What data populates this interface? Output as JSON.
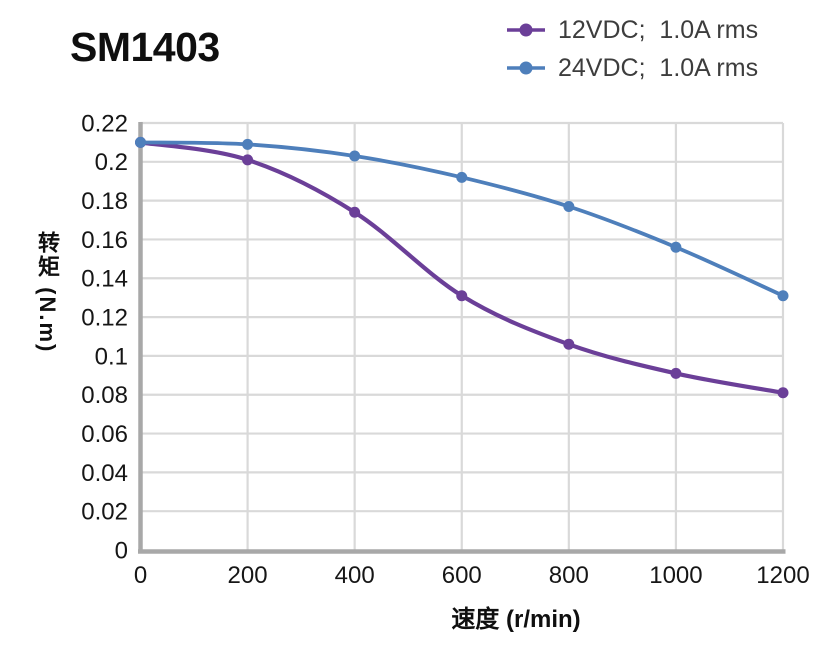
{
  "title": "SM1403",
  "chart_data": {
    "type": "line",
    "x": [
      0,
      200,
      400,
      600,
      800,
      1000,
      1200
    ],
    "series": [
      {
        "name": "12VDC;  1.0A rms",
        "color": "#6B3F98",
        "values": [
          0.21,
          0.201,
          0.174,
          0.131,
          0.106,
          0.091,
          0.081
        ]
      },
      {
        "name": "24VDC;  1.0A rms",
        "color": "#4E7FBB",
        "values": [
          0.21,
          0.209,
          0.203,
          0.192,
          0.177,
          0.156,
          0.131
        ]
      }
    ],
    "xlabel": "速度 (r/min)",
    "ylabel": "转矩 (N.m)",
    "xlim": [
      0,
      1200
    ],
    "ylim": [
      0,
      0.22
    ],
    "xtick_labels": [
      "0",
      "200",
      "400",
      "600",
      "800",
      "1000",
      "1200"
    ],
    "ytick_labels": [
      "0",
      "0.02",
      "0.04",
      "0.06",
      "0.08",
      "0.1",
      "0.12",
      "0.14",
      "0.16",
      "0.18",
      "0.2",
      "0.22"
    ],
    "grid": true,
    "grid_color": "#D9D9D9",
    "axis_color": "#A8A8A8",
    "legend_position": "top-right",
    "marker": "circle"
  }
}
